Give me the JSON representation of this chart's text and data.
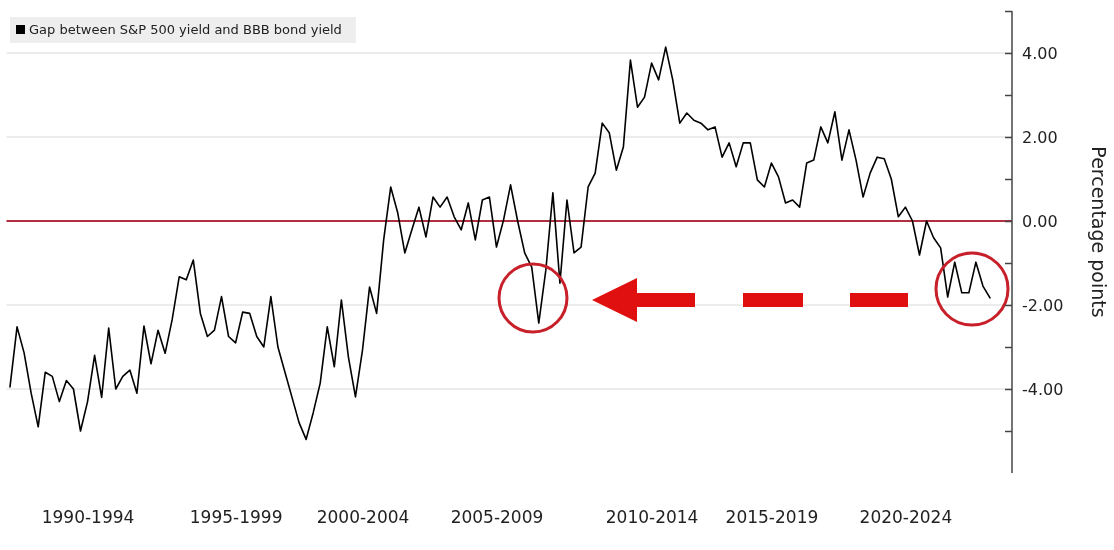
{
  "chart_data": {
    "type": "line",
    "ylabel": "Percentage points",
    "categories": [
      null,
      null,
      null,
      null,
      null,
      null,
      null,
      null,
      null,
      null,
      null,
      "1990-1994",
      null,
      null,
      null,
      null,
      null,
      null,
      null,
      null,
      null,
      null,
      null,
      null,
      null,
      null,
      null,
      null,
      null,
      null,
      null,
      null,
      "1995-1999",
      null,
      null,
      null,
      null,
      null,
      null,
      null,
      null,
      null,
      null,
      null,
      null,
      null,
      null,
      null,
      null,
      null,
      "2000-2004",
      null,
      null,
      null,
      null,
      null,
      null,
      null,
      null,
      null,
      null,
      null,
      null,
      null,
      null,
      null,
      null,
      null,
      null,
      "2005-2009",
      null,
      null,
      null,
      null,
      null,
      null,
      null,
      null,
      null,
      null,
      null,
      null,
      null,
      null,
      null,
      null,
      null,
      null,
      null,
      null,
      null,
      "2010-2014",
      null,
      null,
      null,
      null,
      null,
      null,
      null,
      null,
      null,
      null,
      null,
      null,
      null,
      null,
      null,
      null,
      "2015-2019",
      null,
      null,
      null,
      null,
      null,
      null,
      null,
      null,
      null,
      null,
      null,
      null,
      null,
      null,
      null,
      null,
      null,
      null,
      "2020-2024",
      null,
      null,
      null,
      null,
      null,
      null,
      null,
      null,
      null,
      null,
      null,
      null
    ],
    "ylim": [
      -6,
      5
    ],
    "yticks": [
      {
        "value": -5,
        "label": null
      },
      {
        "value": -4,
        "label": "-4.00"
      },
      {
        "value": -3,
        "label": null
      },
      {
        "value": -2,
        "label": "-2.00"
      },
      {
        "value": -1,
        "label": null
      },
      {
        "value": 0,
        "label": "0.00"
      },
      {
        "value": 1,
        "label": null
      },
      {
        "value": 2,
        "label": "2.00"
      },
      {
        "value": 3,
        "label": null
      },
      {
        "value": 4,
        "label": "4.00"
      },
      {
        "value": 5,
        "label": null
      }
    ],
    "grid": "y",
    "legend": "top left",
    "line_style": "solid",
    "ref_lines": [
      {
        "axis": "y",
        "value": 0,
        "color": "#b03040"
      }
    ],
    "series": [
      {
        "name": "Gap between S&P 500 yield and BBB bond yield",
        "color": "#000000",
        "values": [
          -3.95,
          -2.52,
          -3.14,
          -4.1,
          -4.9,
          -3.6,
          -3.7,
          -4.3,
          -3.8,
          -4.0,
          -5.0,
          -4.3,
          -3.2,
          -4.2,
          -2.55,
          -4.0,
          -3.7,
          -3.55,
          -4.1,
          -2.5,
          -3.4,
          -2.6,
          -3.15,
          -2.35,
          -1.33,
          -1.4,
          -0.93,
          -2.2,
          -2.75,
          -2.6,
          -1.8,
          -2.75,
          -2.9,
          -2.17,
          -2.2,
          -2.75,
          -3.0,
          -1.8,
          -3.0,
          -3.6,
          -4.2,
          -4.8,
          -5.2,
          -4.57,
          -3.86,
          -2.52,
          -3.47,
          -1.88,
          -3.24,
          -4.19,
          -3.07,
          -1.57,
          -2.2,
          -0.45,
          0.81,
          0.19,
          -0.76,
          -0.21,
          0.33,
          -0.38,
          0.57,
          0.33,
          0.57,
          0.1,
          -0.21,
          0.43,
          -0.45,
          0.5,
          0.57,
          -0.62,
          0.02,
          0.86,
          0.0,
          -0.76,
          -1.1,
          -2.43,
          -1.17,
          0.67,
          -1.48,
          0.5,
          -0.76,
          -0.62,
          0.81,
          1.14,
          2.33,
          2.1,
          1.21,
          1.76,
          3.83,
          2.71,
          2.95,
          3.76,
          3.36,
          4.14,
          3.36,
          2.33,
          2.57,
          2.4,
          2.33,
          2.17,
          2.24,
          1.52,
          1.86,
          1.29,
          1.86,
          1.86,
          0.98,
          0.81,
          1.38,
          1.05,
          0.43,
          0.5,
          0.33,
          1.38,
          1.45,
          2.24,
          1.86,
          2.6,
          1.45,
          2.17,
          1.45,
          0.57,
          1.14,
          1.52,
          1.48,
          1.0,
          0.1,
          0.33,
          0.0,
          -0.81,
          0.0,
          -0.4,
          -0.64,
          -1.81,
          -0.98,
          -1.71,
          -1.71,
          -0.98,
          -1.55,
          -1.83
        ]
      }
    ]
  }
}
